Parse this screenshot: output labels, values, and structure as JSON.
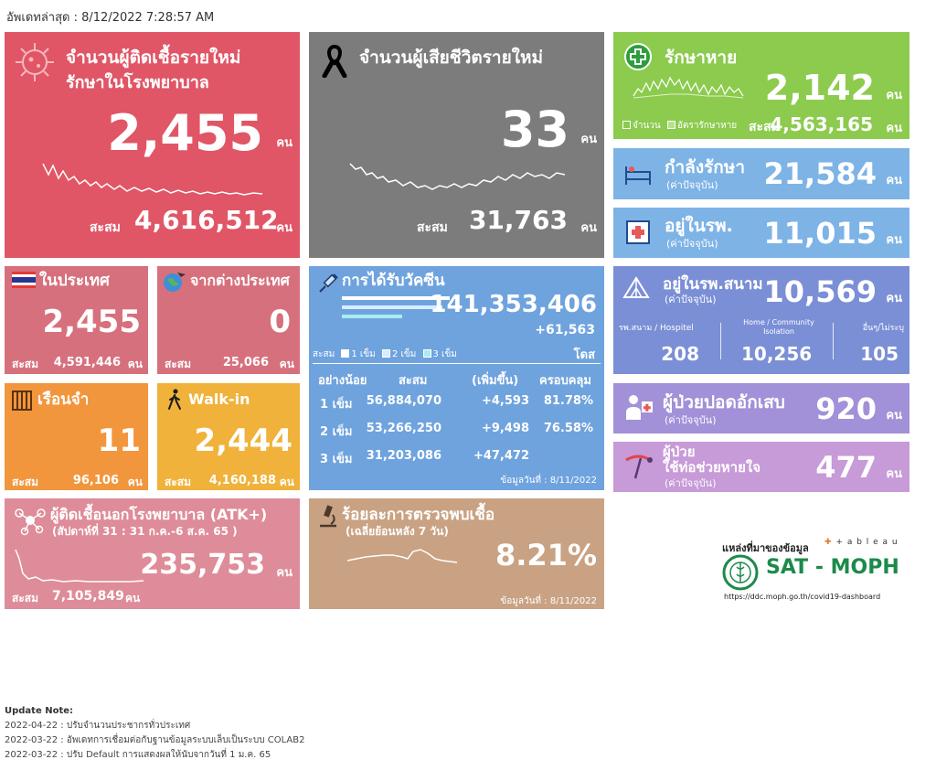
{
  "updated": "อัพเดทล่าสุด : 8/12/2022 7:28:57 AM",
  "new_cases": {
    "title": "จำนวนผู้ติดเชื้อรายใหม่",
    "subtitle": "รักษาในโรงพยาบาล",
    "value": "2,455",
    "unit": "คน",
    "cum_label": "สะสม",
    "cum_value": "4,616,512",
    "cum_unit": "คน"
  },
  "new_deaths": {
    "title": "จำนวนผู้เสียชีวิตรายใหม่",
    "value": "33",
    "unit": "คน",
    "cum_label": "สะสม",
    "cum_value": "31,763",
    "cum_unit": "คน"
  },
  "recovered": {
    "title": "รักษาหาย",
    "value": "2,142",
    "unit": "คน",
    "legend_a": "จำนวน",
    "legend_b": "อัตรารักษาหาย",
    "cum_label": "สะสม",
    "cum_value": "4,563,165",
    "cum_unit": "คน"
  },
  "treating": {
    "title": "กำลังรักษา",
    "sub": "(ค่าปัจจุบัน)",
    "value": "21,584",
    "unit": "คน"
  },
  "hospital": {
    "title": "อยู่ในรพ.",
    "sub": "(ค่าปัจจุบัน)",
    "value": "11,015",
    "unit": "คน"
  },
  "domestic": {
    "title": "ในประเทศ",
    "value": "2,455",
    "cum_label": "สะสม",
    "cum_value": "4,591,446",
    "cum_unit": "คน"
  },
  "imported": {
    "title": "จากต่างประเทศ",
    "value": "0",
    "cum_label": "สะสม",
    "cum_value": "25,066",
    "cum_unit": "คน"
  },
  "vaccine": {
    "title": "การได้รับวัคซีน",
    "total": "141,353,406",
    "increase": "+61,563",
    "dose_unit": "โดส",
    "legend_label": "สะสม",
    "legend_1": "1 เข็ม",
    "legend_2": "2 เข็ม",
    "legend_3": "3 เข็ม",
    "headers": [
      "อย่างน้อย",
      "สะสม",
      "(เพิ่มขึ้น)",
      "ครอบคลุม"
    ],
    "rows": [
      {
        "dose": "1 เข็ม",
        "cum": "56,884,070",
        "inc": "+4,593",
        "cov": "81.78%"
      },
      {
        "dose": "2 เข็ม",
        "cum": "53,266,250",
        "inc": "+9,498",
        "cov": "76.58%"
      },
      {
        "dose": "3 เข็ม",
        "cum": "31,203,086",
        "inc": "+47,472",
        "cov": ""
      }
    ],
    "date": "ข้อมูลวันที่ : 8/11/2022"
  },
  "field_hospital": {
    "title": "อยู่ในรพ.สนาม",
    "sub": "(ค่าปัจจุบัน)",
    "value": "10,569",
    "unit": "คน",
    "col1_label": "รพ.สนาม / Hospitel",
    "col2_label": "Home / Community Isolation",
    "col3_label": "อื่นๆ/ไม่ระบุ",
    "col1_value": "208",
    "col2_value": "10,256",
    "col3_value": "105"
  },
  "prison": {
    "title": "เรือนจำ",
    "value": "11",
    "cum_label": "สะสม",
    "cum_value": "96,106",
    "cum_unit": "คน"
  },
  "walkin": {
    "title": "Walk-in",
    "value": "2,444",
    "cum_label": "สะสม",
    "cum_value": "4,160,188",
    "cum_unit": "คน"
  },
  "pneumonia": {
    "title": "ผู้ป่วยปอดอักเสบ",
    "sub": "(ค่าปัจจุบัน)",
    "value": "920",
    "unit": "คน"
  },
  "ventilator": {
    "title1": "ผู้ป่วย",
    "title2": "ใช้ท่อช่วยหายใจ",
    "sub": "(ค่าปัจจุบัน)",
    "value": "477",
    "unit": "คน"
  },
  "atk": {
    "title": "ผู้ติดเชื้อนอกโรงพยาบาล (ATK+)",
    "sub": "(สัปดาห์ที่   31 : 31 ก.ค.-6 ส.ค. 65    )",
    "value": "235,753",
    "unit": "คน",
    "cum_label": "สะสม",
    "cum_value": "7,105,849",
    "cum_unit": "คน"
  },
  "positivity": {
    "title": "ร้อยละการตรวจพบเชื้อ",
    "sub": "(เฉลี่ยย้อนหลัง 7 วัน)",
    "value": "8.21%",
    "date": "ข้อมูลวันที่ : 8/11/2022"
  },
  "source": {
    "label": "แหล่งที่มาของข้อมูล",
    "tableau": "+ a b l e a u",
    "brand": "SAT - MOPH",
    "url": "https://ddc.moph.go.th/covid19-dashboard"
  },
  "notes": {
    "heading": "Update Note:",
    "items": [
      "2022-04-22 : ปรับจำนวนประชากรทั่วประเทศ",
      "2022-03-22 : อัพเดทการเชื่อมต่อกับฐานข้อมูลระบบเล็บเป็นระบบ COLAB2",
      "2022-03-22 : ปรับ Default การแสดงผลให้นับจากวันที่ 1 ม.ค. 65"
    ]
  },
  "colors": {
    "red": "#E05666",
    "gray": "#7C7C7C",
    "green": "#8CCB4E",
    "lightblue": "#7EB3E6",
    "pink": "#D7707D",
    "blue": "#6FA3DE",
    "purpleblue": "#7B8FD6",
    "orange": "#F2963D",
    "yellow": "#F0B23A",
    "violet": "#A290D8",
    "lilac": "#C79AD8",
    "atkpink": "#DE8C99",
    "tan": "#C9A283"
  }
}
